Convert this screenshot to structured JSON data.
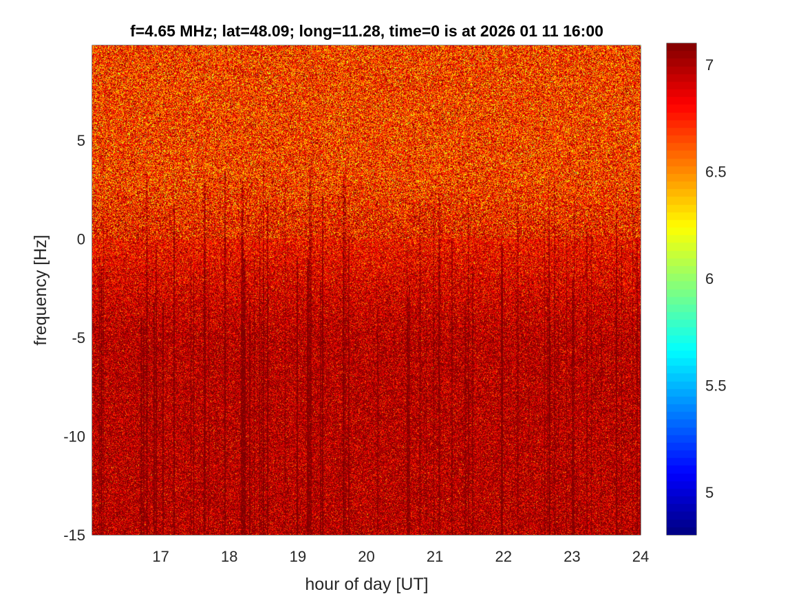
{
  "chart_data": {
    "type": "heatmap",
    "title": "f=4.65 MHz;  lat=48.09; long=11.28, time=0 is at 2026 01 11 16:00",
    "xlabel": "hour of day [UT]",
    "ylabel": "frequency [Hz]",
    "xlim": [
      16,
      24
    ],
    "ylim": [
      -15,
      9.8
    ],
    "x_ticks": [
      17,
      18,
      19,
      20,
      21,
      22,
      23,
      24
    ],
    "y_ticks": [
      -15,
      -10,
      -5,
      0,
      5
    ],
    "colorbar": {
      "clim": [
        4.8,
        7.1
      ],
      "ticks": [
        5,
        5.5,
        6,
        6.5,
        7
      ],
      "colormap": "jet"
    },
    "description_level": {
      "above_3hz": 6.7,
      "below_minus5hz": 7.0
    }
  }
}
